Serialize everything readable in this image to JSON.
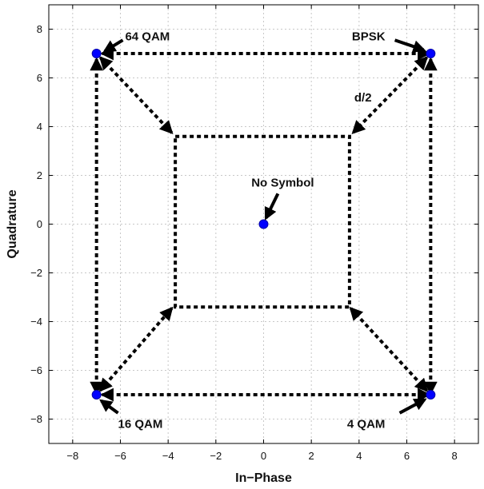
{
  "chart_data": {
    "type": "scatter",
    "title": "",
    "xlabel": "In−Phase",
    "ylabel": "Quadrature",
    "xlim": [
      -9,
      9
    ],
    "ylim": [
      -9,
      9
    ],
    "xticks": [
      -8,
      -6,
      -4,
      -2,
      0,
      2,
      4,
      6,
      8
    ],
    "yticks": [
      -8,
      -6,
      -4,
      -2,
      0,
      2,
      4,
      6,
      8
    ],
    "xtick_labels": [
      "−8",
      "−6",
      "−4",
      "−2",
      "0",
      "2",
      "4",
      "6",
      "8"
    ],
    "ytick_labels": [
      "−8",
      "−6",
      "−4",
      "−2",
      "0",
      "2",
      "4",
      "6",
      "8"
    ],
    "grid": true,
    "marker_color": "#0000ff",
    "points": [
      {
        "x": -7,
        "y": 7
      },
      {
        "x": 7,
        "y": 7
      },
      {
        "x": -7,
        "y": -7
      },
      {
        "x": 7,
        "y": -7
      },
      {
        "x": 0,
        "y": 0
      }
    ],
    "inner_square": {
      "xmin": -3.7,
      "xmax": 3.6,
      "ymin": -3.4,
      "ymax": 3.6
    },
    "dashed_arrows": [
      {
        "from": [
          -7,
          7
        ],
        "to": [
          7,
          7
        ],
        "double": true
      },
      {
        "from": [
          -7,
          -7
        ],
        "to": [
          7,
          -7
        ],
        "double": true
      },
      {
        "from": [
          -7,
          7
        ],
        "to": [
          -7,
          -7
        ],
        "double": true
      },
      {
        "from": [
          7,
          7
        ],
        "to": [
          7,
          -7
        ],
        "double": true
      },
      {
        "from": [
          -7,
          7
        ],
        "to": [
          -3.8,
          3.7
        ],
        "double": true
      },
      {
        "from": [
          7,
          7
        ],
        "to": [
          3.7,
          3.7
        ],
        "double": true
      },
      {
        "from": [
          -7,
          -7
        ],
        "to": [
          -3.8,
          -3.4
        ],
        "double": true
      },
      {
        "from": [
          7,
          -7
        ],
        "to": [
          3.6,
          -3.4
        ],
        "double": true
      }
    ],
    "annotations": [
      {
        "text": "64 QAM",
        "anchor": "start",
        "tx": -5.8,
        "ty": 7.7,
        "pointer_from": [
          -5.9,
          7.55
        ],
        "pointer_to": [
          -6.65,
          7.1
        ]
      },
      {
        "text": "BPSK",
        "anchor": "start",
        "tx": 3.7,
        "ty": 7.7,
        "pointer_from": [
          5.5,
          7.55
        ],
        "pointer_to": [
          6.7,
          7.15
        ]
      },
      {
        "text": "d/2",
        "anchor": "start",
        "tx": 3.8,
        "ty": 5.2,
        "pointer_from": null,
        "pointer_to": null
      },
      {
        "text": "No Symbol",
        "anchor": "middle",
        "tx": 0.8,
        "ty": 1.7,
        "pointer_from": [
          0.6,
          1.25
        ],
        "pointer_to": [
          0.1,
          0.25
        ]
      },
      {
        "text": "16 QAM",
        "anchor": "start",
        "tx": -6.1,
        "ty": -8.2,
        "pointer_from": [
          -6.1,
          -7.75
        ],
        "pointer_to": [
          -6.8,
          -7.25
        ]
      },
      {
        "text": "4 QAM",
        "anchor": "start",
        "tx": 3.5,
        "ty": -8.2,
        "pointer_from": [
          5.7,
          -7.75
        ],
        "pointer_to": [
          6.75,
          -7.2
        ]
      }
    ]
  }
}
